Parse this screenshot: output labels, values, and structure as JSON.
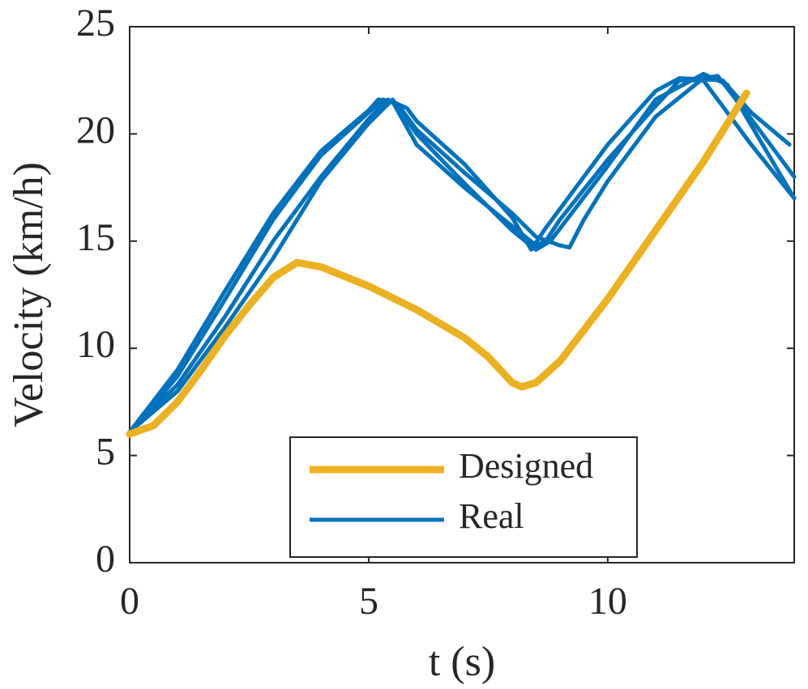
{
  "chart_data": {
    "type": "line",
    "x_label": "t (s)",
    "y_label": "Velocity (km/h)",
    "xlim": [
      0,
      13.9
    ],
    "ylim": [
      0,
      25
    ],
    "xticks": [
      0,
      5,
      10
    ],
    "yticks": [
      0,
      5,
      10,
      15,
      20,
      25
    ],
    "legend": "bottom-center",
    "series": [
      {
        "name": "Designed",
        "color": "#EDB120",
        "runs": [
          {
            "x": [
              0,
              0.5,
              1,
              1.5,
              2,
              2.5,
              3,
              3.5,
              4,
              5,
              6,
              7,
              7.5,
              8,
              8.2,
              8.5,
              9,
              10,
              11,
              12,
              12.9
            ],
            "values": [
              6.0,
              6.4,
              7.5,
              9.0,
              10.6,
              12.0,
              13.3,
              14.0,
              13.8,
              12.9,
              11.8,
              10.5,
              9.6,
              8.4,
              8.2,
              8.4,
              9.4,
              12.3,
              15.5,
              18.7,
              21.9
            ]
          }
        ]
      },
      {
        "name": "Real",
        "color": "#0072BD",
        "runs": [
          {
            "x": [
              0,
              1,
              2,
              3,
              4,
              5,
              5.2,
              5.5,
              6,
              7,
              8,
              8.5,
              8.7,
              9,
              10,
              11,
              11.5,
              12,
              13,
              13.9
            ],
            "values": [
              6.1,
              9.0,
              12.7,
              16.3,
              19.2,
              21.1,
              21.6,
              21.5,
              19.5,
              17.5,
              15.7,
              14.8,
              15.0,
              16.0,
              18.8,
              21.3,
              22.5,
              22.5,
              19.5,
              17.0
            ]
          },
          {
            "x": [
              0,
              1,
              2,
              3,
              4,
              5,
              5.3,
              5.6,
              6,
              7,
              8,
              8.5,
              9,
              9.2,
              9.5,
              10,
              11,
              12,
              12.3,
              13,
              13.9
            ],
            "values": [
              6.0,
              8.7,
              12.3,
              16.0,
              19.0,
              21.0,
              21.6,
              21.4,
              20.2,
              18.2,
              16.3,
              15.2,
              14.8,
              14.7,
              16.0,
              17.8,
              20.8,
              22.6,
              22.7,
              20.7,
              18.0
            ]
          },
          {
            "x": [
              0,
              1,
              2,
              3,
              4,
              5,
              5.4,
              5.8,
              6,
              7,
              8,
              8.4,
              8.7,
              10,
              11,
              11.5,
              12.4,
              13,
              13.8
            ],
            "values": [
              6.1,
              8.3,
              11.5,
              15.0,
              18.0,
              20.7,
              21.6,
              21.2,
              20.6,
              18.6,
              16.1,
              14.6,
              15.6,
              19.5,
              22.0,
              22.6,
              22.5,
              21.0,
              19.5
            ]
          },
          {
            "x": [
              0,
              1,
              2,
              3,
              4,
              5,
              5.5,
              6,
              7,
              8,
              8.5,
              8.8,
              10,
              11,
              12,
              12.5,
              13.9
            ],
            "values": [
              6.1,
              8.0,
              11.0,
              14.2,
              17.8,
              20.5,
              21.6,
              20.0,
              17.7,
              15.5,
              14.6,
              15.0,
              18.5,
              21.6,
              22.8,
              22.3,
              17.0
            ]
          }
        ]
      }
    ]
  }
}
